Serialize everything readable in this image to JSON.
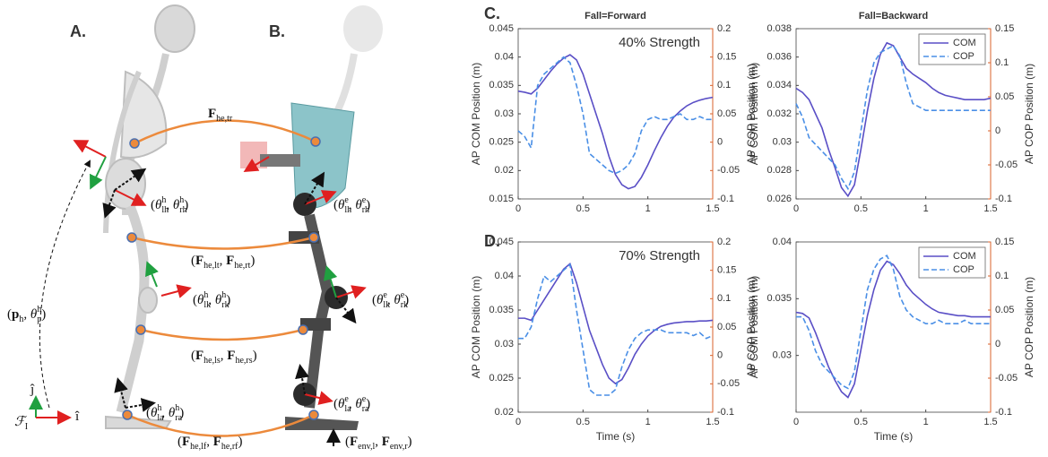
{
  "figure": {
    "panel_labels": [
      "A.",
      "B.",
      "C.",
      "D."
    ],
    "labels": [
      {
        "segments": [
          {
            "text": "F",
            "style": "bold"
          },
          {
            "text": "he,tr",
            "style": "sub"
          }
        ]
      },
      {
        "segments": [
          {
            "text": "(",
            "style": "normal"
          },
          {
            "text": "θ",
            "style": "italic"
          },
          {
            "text": "lh",
            "style": "sub"
          },
          {
            "text": "h",
            "style": "sup"
          },
          {
            "text": ", ",
            "style": "normal"
          },
          {
            "text": "θ",
            "style": "italic"
          },
          {
            "text": "rh",
            "style": "sub"
          },
          {
            "text": "h",
            "style": "sup"
          },
          {
            "text": ")",
            "style": "normal"
          }
        ]
      },
      {
        "segments": [
          {
            "text": "(",
            "style": "normal"
          },
          {
            "text": "θ",
            "style": "italic"
          },
          {
            "text": "lh",
            "style": "sub"
          },
          {
            "text": "e",
            "style": "sup"
          },
          {
            "text": ", ",
            "style": "normal"
          },
          {
            "text": "θ",
            "style": "italic"
          },
          {
            "text": "rh",
            "style": "sub"
          },
          {
            "text": "e",
            "style": "sup"
          },
          {
            "text": ")",
            "style": "normal"
          }
        ]
      },
      {
        "segments": [
          {
            "text": "(",
            "style": "normal"
          },
          {
            "text": "F",
            "style": "bold"
          },
          {
            "text": "he,lt",
            "style": "sub"
          },
          {
            "text": ", ",
            "style": "normal"
          },
          {
            "text": "F",
            "style": "bold"
          },
          {
            "text": "he,rt",
            "style": "sub"
          },
          {
            "text": ")",
            "style": "normal"
          }
        ]
      },
      {
        "segments": [
          {
            "text": "(",
            "style": "normal"
          },
          {
            "text": "θ",
            "style": "italic"
          },
          {
            "text": "lk",
            "style": "sub"
          },
          {
            "text": "h",
            "style": "sup"
          },
          {
            "text": ", ",
            "style": "normal"
          },
          {
            "text": "θ",
            "style": "italic"
          },
          {
            "text": "rk",
            "style": "sub"
          },
          {
            "text": "h",
            "style": "sup"
          },
          {
            "text": ")",
            "style": "normal"
          }
        ]
      },
      {
        "segments": [
          {
            "text": "(",
            "style": "normal"
          },
          {
            "text": "θ",
            "style": "italic"
          },
          {
            "text": "lk",
            "style": "sub"
          },
          {
            "text": "e",
            "style": "sup"
          },
          {
            "text": ", ",
            "style": "normal"
          },
          {
            "text": "θ",
            "style": "italic"
          },
          {
            "text": "rk",
            "style": "sub"
          },
          {
            "text": "e",
            "style": "sup"
          },
          {
            "text": ")",
            "style": "normal"
          }
        ]
      },
      {
        "segments": [
          {
            "text": "(",
            "style": "normal"
          },
          {
            "text": "p",
            "style": "bold"
          },
          {
            "text": "h",
            "style": "sub"
          },
          {
            "text": ", ",
            "style": "normal"
          },
          {
            "text": "θ",
            "style": "italic"
          },
          {
            "text": "p",
            "style": "sub"
          },
          {
            "text": "h",
            "style": "sup"
          },
          {
            "text": ")",
            "style": "normal"
          }
        ]
      },
      {
        "segments": [
          {
            "text": "(",
            "style": "normal"
          },
          {
            "text": "F",
            "style": "bold"
          },
          {
            "text": "he,ls",
            "style": "sub"
          },
          {
            "text": ", ",
            "style": "normal"
          },
          {
            "text": "F",
            "style": "bold"
          },
          {
            "text": "he,rs",
            "style": "sub"
          },
          {
            "text": ")",
            "style": "normal"
          }
        ]
      },
      {
        "segments": [
          {
            "text": "(",
            "style": "normal"
          },
          {
            "text": "θ",
            "style": "italic"
          },
          {
            "text": "la",
            "style": "sub"
          },
          {
            "text": "h",
            "style": "sup"
          },
          {
            "text": ", ",
            "style": "normal"
          },
          {
            "text": "θ",
            "style": "italic"
          },
          {
            "text": "ra",
            "style": "sub"
          },
          {
            "text": "h",
            "style": "sup"
          },
          {
            "text": ")",
            "style": "normal"
          }
        ]
      },
      {
        "segments": [
          {
            "text": "(",
            "style": "normal"
          },
          {
            "text": "θ",
            "style": "italic"
          },
          {
            "text": "la",
            "style": "sub"
          },
          {
            "text": "e",
            "style": "sup"
          },
          {
            "text": ", ",
            "style": "normal"
          },
          {
            "text": "θ",
            "style": "italic"
          },
          {
            "text": "ra",
            "style": "sub"
          },
          {
            "text": "e",
            "style": "sup"
          },
          {
            "text": ")",
            "style": "normal"
          }
        ]
      },
      {
        "segments": [
          {
            "text": "(",
            "style": "normal"
          },
          {
            "text": "F",
            "style": "bold"
          },
          {
            "text": "he,lf",
            "style": "sub"
          },
          {
            "text": ", ",
            "style": "normal"
          },
          {
            "text": "F",
            "style": "bold"
          },
          {
            "text": "he,rf",
            "style": "sub"
          },
          {
            "text": ")",
            "style": "normal"
          }
        ]
      },
      {
        "segments": [
          {
            "text": "(",
            "style": "normal"
          },
          {
            "text": "F",
            "style": "bold"
          },
          {
            "text": "env,l",
            "style": "sub"
          },
          {
            "text": ", ",
            "style": "normal"
          },
          {
            "text": "F",
            "style": "bold"
          },
          {
            "text": "env,r",
            "style": "sub"
          },
          {
            "text": ")",
            "style": "normal"
          }
        ]
      },
      {
        "segments": [
          {
            "text": "ĵ",
            "style": "normal"
          }
        ]
      },
      {
        "segments": [
          {
            "text": "î",
            "style": "normal"
          }
        ]
      },
      {
        "segments": [
          {
            "text": "ℱ",
            "style": "italic"
          },
          {
            "text": "I",
            "style": "sub"
          }
        ]
      }
    ]
  },
  "chart_data": [
    {
      "type": "line",
      "title": "Fall=Forward",
      "annotation": "40% Strength",
      "ylabel": "AP COM Position (m)",
      "y2label": "AP COP Position (m)",
      "x": [
        0,
        0.05,
        0.1,
        0.15,
        0.2,
        0.25,
        0.3,
        0.35,
        0.4,
        0.45,
        0.5,
        0.55,
        0.6,
        0.65,
        0.7,
        0.75,
        0.8,
        0.85,
        0.9,
        0.95,
        1,
        1.05,
        1.1,
        1.15,
        1.2,
        1.25,
        1.3,
        1.35,
        1.4,
        1.45,
        1.5
      ],
      "xlim": [
        0,
        1.5
      ],
      "xticks": [
        0,
        0.5,
        1,
        1.5
      ],
      "ylim": [
        0.015,
        0.045
      ],
      "yticks": [
        0.015,
        0.02,
        0.025,
        0.03,
        0.035,
        0.04,
        0.045
      ],
      "y2lim": [
        -0.1,
        0.2
      ],
      "y2ticks": [
        -0.1,
        -0.05,
        0,
        0.05,
        0.1,
        0.15,
        0.2
      ],
      "series": [
        {
          "name": "COM",
          "color": "#5a4fc6",
          "style": "solid",
          "values": [
            0.034,
            0.0338,
            0.0335,
            0.0345,
            0.036,
            0.0375,
            0.0388,
            0.0398,
            0.0404,
            0.0395,
            0.037,
            0.0335,
            0.03,
            0.0265,
            0.0225,
            0.0193,
            0.0175,
            0.0168,
            0.0172,
            0.0188,
            0.021,
            0.0235,
            0.0258,
            0.0278,
            0.0294,
            0.0305,
            0.0314,
            0.032,
            0.0324,
            0.0327,
            0.0329
          ]
        },
        {
          "name": "COP",
          "color": "#4a8fe6",
          "style": "dashed",
          "axis": "y2",
          "values": [
            0.02,
            0.01,
            -0.01,
            0.1,
            0.12,
            0.13,
            0.14,
            0.15,
            0.14,
            0.1,
            0.05,
            -0.02,
            -0.03,
            -0.04,
            -0.05,
            -0.055,
            -0.05,
            -0.04,
            -0.02,
            0.02,
            0.04,
            0.045,
            0.04,
            0.04,
            0.045,
            0.05,
            0.04,
            0.04,
            0.045,
            0.04,
            0.04
          ]
        }
      ]
    },
    {
      "type": "line",
      "title": "Fall=Backward",
      "legend": "upper right",
      "ylabel": "AP COM Position (m)",
      "y2label": "AP COP Position (m)",
      "x": [
        0,
        0.05,
        0.1,
        0.15,
        0.2,
        0.25,
        0.3,
        0.35,
        0.4,
        0.45,
        0.5,
        0.55,
        0.6,
        0.65,
        0.7,
        0.75,
        0.8,
        0.85,
        0.9,
        0.95,
        1,
        1.05,
        1.1,
        1.15,
        1.2,
        1.25,
        1.3,
        1.35,
        1.4,
        1.45,
        1.5
      ],
      "xlim": [
        0,
        1.5
      ],
      "xticks": [
        0,
        0.5,
        1,
        1.5
      ],
      "ylim": [
        0.026,
        0.038
      ],
      "yticks": [
        0.026,
        0.028,
        0.03,
        0.032,
        0.034,
        0.036,
        0.038
      ],
      "y2lim": [
        -0.1,
        0.15
      ],
      "y2ticks": [
        -0.1,
        -0.05,
        0,
        0.05,
        0.1,
        0.15
      ],
      "series": [
        {
          "name": "COM",
          "color": "#5a4fc6",
          "style": "solid",
          "values": [
            0.0338,
            0.0335,
            0.033,
            0.032,
            0.031,
            0.0295,
            0.0282,
            0.0268,
            0.0262,
            0.027,
            0.0295,
            0.0322,
            0.0345,
            0.0362,
            0.037,
            0.0368,
            0.036,
            0.0352,
            0.0348,
            0.0345,
            0.0342,
            0.0338,
            0.0335,
            0.0333,
            0.0332,
            0.0331,
            0.033,
            0.033,
            0.033,
            0.033,
            0.0331
          ]
        },
        {
          "name": "COP",
          "color": "#4a8fe6",
          "style": "dashed",
          "axis": "y2",
          "values": [
            0.04,
            0.02,
            -0.01,
            -0.02,
            -0.03,
            -0.04,
            -0.05,
            -0.07,
            -0.085,
            -0.06,
            0,
            0.06,
            0.1,
            0.115,
            0.12,
            0.125,
            0.11,
            0.07,
            0.04,
            0.035,
            0.03,
            0.03,
            0.03,
            0.03,
            0.03,
            0.03,
            0.03,
            0.03,
            0.03,
            0.03,
            0.03
          ]
        }
      ]
    },
    {
      "type": "line",
      "annotation": "70% Strength",
      "xlabel": "Time (s)",
      "ylabel": "AP COM Position (m)",
      "y2label": "AP COP Position (m)",
      "x": [
        0,
        0.05,
        0.1,
        0.15,
        0.2,
        0.25,
        0.3,
        0.35,
        0.4,
        0.45,
        0.5,
        0.55,
        0.6,
        0.65,
        0.7,
        0.75,
        0.8,
        0.85,
        0.9,
        0.95,
        1,
        1.05,
        1.1,
        1.15,
        1.2,
        1.25,
        1.3,
        1.35,
        1.4,
        1.45,
        1.5
      ],
      "xlim": [
        0,
        1.5
      ],
      "xticks": [
        0,
        0.5,
        1,
        1.5
      ],
      "ylim": [
        0.02,
        0.045
      ],
      "yticks": [
        0.02,
        0.025,
        0.03,
        0.035,
        0.04,
        0.045
      ],
      "y2lim": [
        -0.1,
        0.2
      ],
      "y2ticks": [
        -0.1,
        -0.05,
        0,
        0.05,
        0.1,
        0.15,
        0.2
      ],
      "series": [
        {
          "name": "COM",
          "color": "#5a4fc6",
          "style": "solid",
          "values": [
            0.0338,
            0.0338,
            0.0335,
            0.035,
            0.0365,
            0.038,
            0.0395,
            0.041,
            0.0418,
            0.039,
            0.0355,
            0.032,
            0.0295,
            0.027,
            0.025,
            0.0242,
            0.0248,
            0.0265,
            0.0285,
            0.03,
            0.0312,
            0.032,
            0.0326,
            0.0329,
            0.0331,
            0.0332,
            0.0333,
            0.0333,
            0.0334,
            0.0334,
            0.0335
          ]
        },
        {
          "name": "COP",
          "color": "#4a8fe6",
          "style": "dashed",
          "axis": "y2",
          "values": [
            0.03,
            0.03,
            0.05,
            0.1,
            0.14,
            0.13,
            0.14,
            0.15,
            0.16,
            0.08,
            0.01,
            -0.06,
            -0.07,
            -0.07,
            -0.07,
            -0.06,
            -0.02,
            0.01,
            0.03,
            0.04,
            0.045,
            0.045,
            0.045,
            0.04,
            0.04,
            0.04,
            0.04,
            0.035,
            0.04,
            0.03,
            0.035
          ]
        }
      ]
    },
    {
      "type": "line",
      "legend": "upper right",
      "xlabel": "Time (s)",
      "ylabel": "AP COM Position (m)",
      "y2label": "AP COP Position (m)",
      "x": [
        0,
        0.05,
        0.1,
        0.15,
        0.2,
        0.25,
        0.3,
        0.35,
        0.4,
        0.45,
        0.5,
        0.55,
        0.6,
        0.65,
        0.7,
        0.75,
        0.8,
        0.85,
        0.9,
        0.95,
        1,
        1.05,
        1.1,
        1.15,
        1.2,
        1.25,
        1.3,
        1.35,
        1.4,
        1.45,
        1.5
      ],
      "xlim": [
        0,
        1.5
      ],
      "xticks": [
        0,
        0.5,
        1,
        1.5
      ],
      "ylim": [
        0.025,
        0.04
      ],
      "yticks": [
        0.03,
        0.035,
        0.04
      ],
      "y2lim": [
        -0.1,
        0.15
      ],
      "y2ticks": [
        -0.1,
        -0.05,
        0,
        0.05,
        0.1,
        0.15
      ],
      "series": [
        {
          "name": "COM",
          "color": "#5a4fc6",
          "style": "solid",
          "values": [
            0.0338,
            0.0337,
            0.0333,
            0.032,
            0.0305,
            0.029,
            0.0278,
            0.0268,
            0.0263,
            0.0275,
            0.0305,
            0.0335,
            0.0358,
            0.0375,
            0.0383,
            0.038,
            0.0372,
            0.0362,
            0.0355,
            0.035,
            0.0345,
            0.0341,
            0.0338,
            0.0337,
            0.0336,
            0.0335,
            0.0335,
            0.0334,
            0.0334,
            0.0334,
            0.0334
          ]
        },
        {
          "name": "COP",
          "color": "#4a8fe6",
          "style": "dashed",
          "axis": "y2",
          "values": [
            0.04,
            0.04,
            0.02,
            -0.01,
            -0.03,
            -0.04,
            -0.05,
            -0.06,
            -0.065,
            -0.04,
            0.02,
            0.08,
            0.11,
            0.125,
            0.13,
            0.11,
            0.07,
            0.05,
            0.04,
            0.035,
            0.03,
            0.03,
            0.035,
            0.03,
            0.03,
            0.03,
            0.035,
            0.03,
            0.03,
            0.03,
            0.03
          ]
        }
      ]
    }
  ]
}
